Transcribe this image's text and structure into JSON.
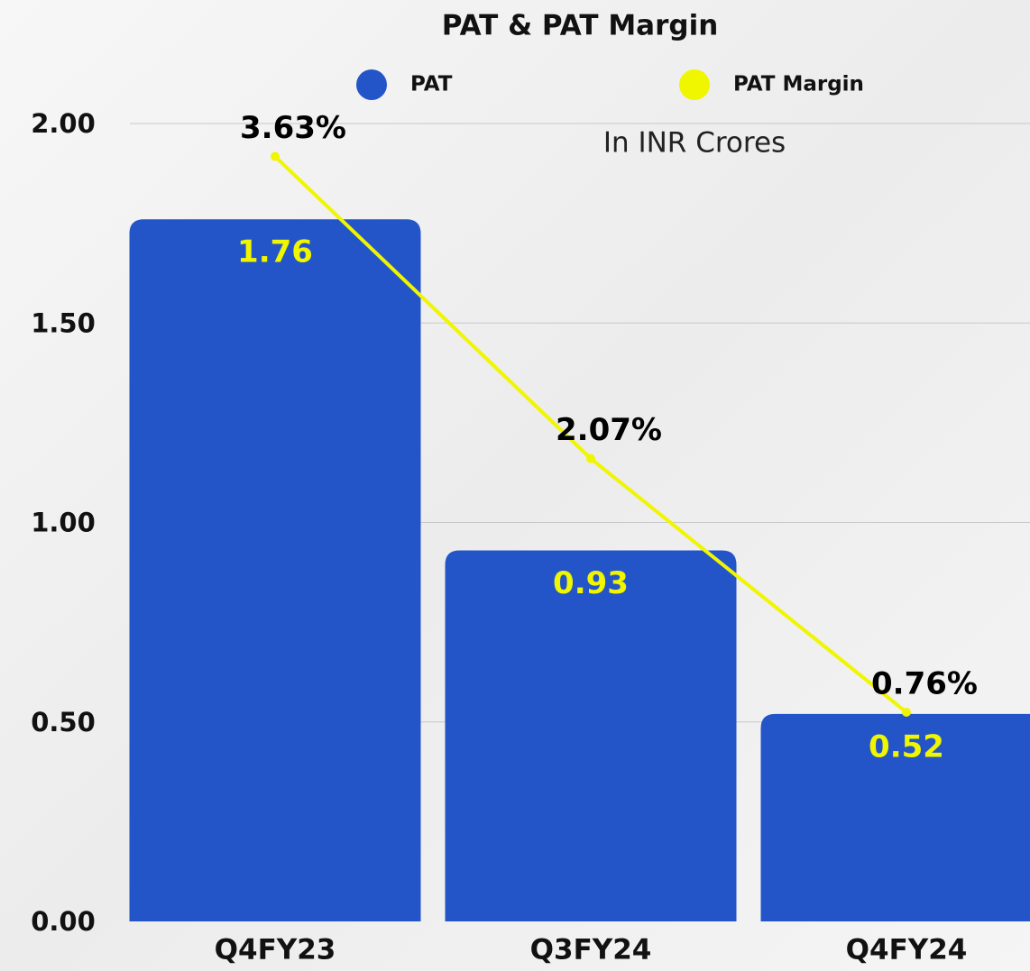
{
  "chart_data": {
    "type": "bar_line",
    "title": "PAT & PAT Margin",
    "subtitle": "In INR Crores",
    "categories": [
      "Q4FY23",
      "Q3FY24",
      "Q4FY24"
    ],
    "series": [
      {
        "name": "PAT",
        "color": "#2455c8",
        "type": "bar",
        "values": [
          1.76,
          0.93,
          0.52
        ],
        "label_color": "#f0f500"
      },
      {
        "name": "PAT  Margin",
        "color": "#f0f500",
        "type": "line",
        "axis": "y2",
        "values": [
          3.63,
          2.07,
          0.76
        ],
        "value_labels": [
          "3.63%",
          "2.07%",
          "0.76%"
        ],
        "label_color": "#000000"
      }
    ],
    "ylim": [
      0,
      2
    ],
    "yticks": [
      {
        "value": 0,
        "label": "0.00"
      },
      {
        "value": 0.5,
        "label": "0.50"
      },
      {
        "value": 1,
        "label": "1.00"
      },
      {
        "value": 1.5,
        "label": "1.50"
      },
      {
        "value": 2,
        "label": "2.00"
      }
    ],
    "y2lim": [
      -0.32,
      3.8
    ],
    "grid": true,
    "legend": "top"
  }
}
